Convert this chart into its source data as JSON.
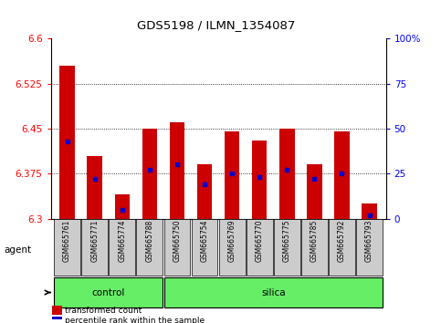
{
  "title": "GDS5198 / ILMN_1354087",
  "samples": [
    "GSM665761",
    "GSM665771",
    "GSM665774",
    "GSM665788",
    "GSM665750",
    "GSM665754",
    "GSM665769",
    "GSM665770",
    "GSM665775",
    "GSM665785",
    "GSM665792",
    "GSM665793"
  ],
  "red_values": [
    6.555,
    6.405,
    6.34,
    6.45,
    6.46,
    6.39,
    6.445,
    6.43,
    6.45,
    6.39,
    6.445,
    6.325
  ],
  "blue_pct": [
    43,
    22,
    5,
    27,
    30,
    19,
    25,
    23,
    27,
    22,
    25,
    2
  ],
  "ymin": 6.3,
  "ymax": 6.6,
  "yticks": [
    6.3,
    6.375,
    6.45,
    6.525,
    6.6
  ],
  "ytick_labels": [
    "6.3",
    "6.375",
    "6.45",
    "6.525",
    "6.6"
  ],
  "y2ticks": [
    0,
    25,
    50,
    75,
    100
  ],
  "y2tick_labels": [
    "0",
    "25",
    "50",
    "75",
    "100%"
  ],
  "groups": [
    {
      "label": "control",
      "start": 0,
      "end": 4
    },
    {
      "label": "silica",
      "start": 4,
      "end": 12
    }
  ],
  "bar_color": "#cc0000",
  "dot_color": "#0000cc",
  "bar_width": 0.55,
  "bg_color": "#ffffff",
  "sample_box_color": "#cccccc",
  "group_bar_color": "#66ee66",
  "agent_label": "agent",
  "legend_items": [
    "transformed count",
    "percentile rank within the sample"
  ]
}
